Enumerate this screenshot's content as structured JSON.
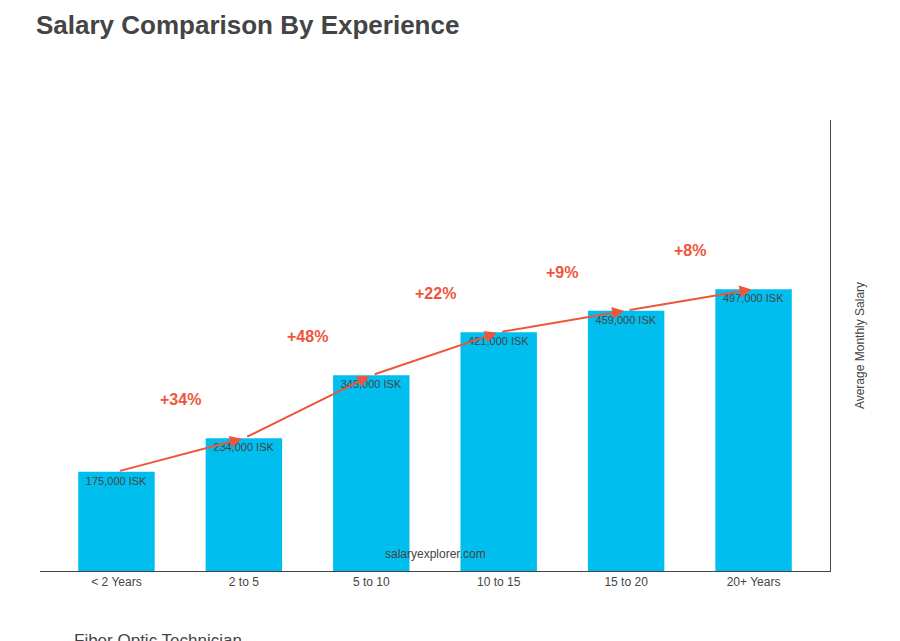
{
  "chart_data": {
    "type": "bar",
    "title": "Salary Comparison By Experience",
    "subtitle": "Fiber Optic Technician",
    "categories": [
      "< 2 Years",
      "2 to 5",
      "5 to 10",
      "10 to 15",
      "15 to 20",
      "20+ Years"
    ],
    "values": [
      175000,
      234000,
      345000,
      421000,
      459000,
      497000
    ],
    "value_labels": [
      "175,000 ISK",
      "234,000 ISK",
      "345,000 ISK",
      "421,000 ISK",
      "459,000 ISK",
      "497,000 ISK"
    ],
    "data_labels": true,
    "color": "#00BFEE",
    "ylabel": "Average Monthly Salary",
    "ylim": [
      0,
      795200
    ],
    "yticks": [],
    "tick_labels": "x",
    "grid": false,
    "annotations": [
      "+34%",
      "+48%",
      "+22%",
      "+9%",
      "+8%"
    ],
    "footer": "salaryexplorer.com"
  }
}
